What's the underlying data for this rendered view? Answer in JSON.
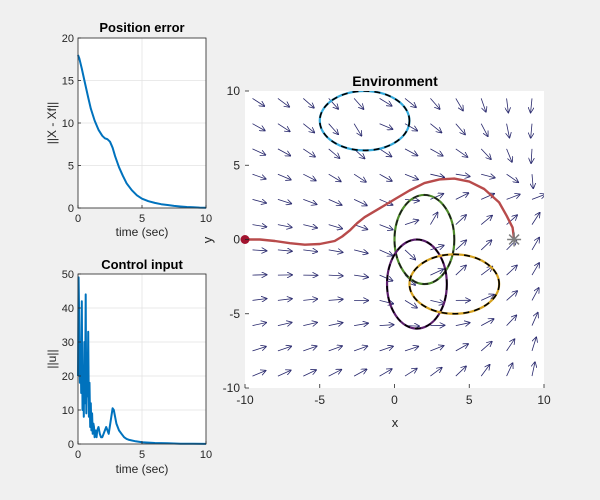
{
  "figure": {
    "background": "#f0f0f0"
  },
  "chart_data": [
    {
      "id": "position-error",
      "type": "line",
      "title": "Position error",
      "xlabel": "time (sec)",
      "ylabel": "||X - Xf||",
      "xlim": [
        0,
        10
      ],
      "ylim": [
        0,
        20
      ],
      "xticks": [
        0,
        5,
        10
      ],
      "yticks": [
        0,
        5,
        10,
        15,
        20
      ],
      "grid": true,
      "series": [
        {
          "color": "#0072bd",
          "x": [
            0,
            0.1,
            0.3,
            0.5,
            0.8,
            1.0,
            1.3,
            1.6,
            1.9,
            2.1,
            2.3,
            2.5,
            2.7,
            2.9,
            3.2,
            3.5,
            3.8,
            4.2,
            4.6,
            5.0,
            5.5,
            6.0,
            6.5,
            7.0,
            7.5,
            8.0,
            8.5,
            9.0,
            9.5,
            10.0
          ],
          "y": [
            18.0,
            17.6,
            16.4,
            15.0,
            13.0,
            11.7,
            10.3,
            9.2,
            8.5,
            8.2,
            8.1,
            7.8,
            7.1,
            6.1,
            4.8,
            3.8,
            2.9,
            2.1,
            1.5,
            1.1,
            0.8,
            0.6,
            0.45,
            0.35,
            0.25,
            0.18,
            0.12,
            0.08,
            0.05,
            0.03
          ]
        }
      ]
    },
    {
      "id": "control-input",
      "type": "line",
      "title": "Control input",
      "xlabel": "time (sec)",
      "ylabel": "||u||",
      "xlim": [
        0,
        10
      ],
      "ylim": [
        0,
        50
      ],
      "xticks": [
        0,
        5,
        10
      ],
      "yticks": [
        0,
        10,
        20,
        30,
        40,
        50
      ],
      "grid": true,
      "series": [
        {
          "color": "#0072bd",
          "x": [
            0,
            0.05,
            0.1,
            0.15,
            0.2,
            0.25,
            0.3,
            0.35,
            0.4,
            0.45,
            0.5,
            0.55,
            0.6,
            0.65,
            0.7,
            0.75,
            0.8,
            0.85,
            0.9,
            0.95,
            1.0,
            1.05,
            1.1,
            1.15,
            1.2,
            1.25,
            1.3,
            1.35,
            1.4,
            1.45,
            1.5,
            1.6,
            1.7,
            1.8,
            1.9,
            2.0,
            2.1,
            2.2,
            2.4,
            2.6,
            2.7,
            2.8,
            2.9,
            3.0,
            3.2,
            3.4,
            3.6,
            3.8,
            4.0,
            4.5,
            5.0,
            5.5,
            6.0,
            6.5,
            7.0,
            8.0,
            9.0,
            10.0
          ],
          "y": [
            20,
            49,
            35,
            18,
            28,
            15,
            42,
            10,
            22,
            8,
            30,
            12,
            44,
            9,
            25,
            14,
            33,
            8,
            18,
            5,
            12,
            4,
            9,
            3,
            6,
            5,
            2,
            4,
            3,
            2,
            4,
            5,
            3,
            2,
            2,
            3,
            4,
            5,
            3,
            8,
            10.5,
            10,
            8,
            6,
            4,
            3,
            2,
            1.5,
            1.2,
            0.8,
            0.5,
            0.4,
            0.3,
            0.25,
            0.2,
            0.1,
            0.05,
            0.02
          ]
        }
      ]
    },
    {
      "id": "environment",
      "type": "scatter",
      "title": "Environment",
      "xlabel": "x",
      "ylabel": "y",
      "xlim": [
        -10,
        10
      ],
      "ylim": [
        -10,
        10
      ],
      "xticks": [
        -10,
        -5,
        0,
        5,
        10
      ],
      "yticks": [
        -10,
        -5,
        0,
        5,
        10
      ],
      "grid": false,
      "colors": {
        "quiver": "#26266b",
        "trajectory": "#b84b4b",
        "start_marker": "#a2142f",
        "goal_marker": "#7f7f7f"
      },
      "start": [
        -10,
        0
      ],
      "goal": [
        8,
        0
      ],
      "trajectory": {
        "x": [
          -10,
          -9,
          -8,
          -7,
          -6,
          -5,
          -4,
          -3.5,
          -3,
          -2.5,
          -2,
          -1,
          0,
          1,
          2,
          3,
          4,
          5,
          6,
          7,
          7.5,
          7.9,
          8
        ],
        "y": [
          0,
          0,
          -0.1,
          -0.25,
          -0.35,
          -0.3,
          -0.1,
          0.2,
          0.6,
          1.1,
          1.5,
          2.1,
          2.7,
          3.3,
          3.8,
          4.05,
          4.1,
          3.9,
          3.4,
          2.5,
          1.6,
          0.8,
          0
        ]
      },
      "obstacles": [
        {
          "cx": -2,
          "cy": 8,
          "rx": 3,
          "ry": 2,
          "color": "#34aadc",
          "dash": "#000000"
        },
        {
          "cx": 2,
          "cy": 0,
          "rx": 2,
          "ry": 3,
          "color": "#4e8a2a",
          "dash": "#1b1b1b"
        },
        {
          "cx": 1.5,
          "cy": -3,
          "rx": 2,
          "ry": 3,
          "color": "#5b1e6b",
          "dash": "#000000"
        },
        {
          "cx": 4,
          "cy": -3,
          "rx": 3,
          "ry": 2,
          "color": "#d6a21f",
          "dash": "#000000"
        }
      ],
      "vector_field": {
        "x_range": [
          -9.5,
          10
        ],
        "y_range": [
          -9.5,
          9.5
        ],
        "step": 1.7
      }
    }
  ]
}
